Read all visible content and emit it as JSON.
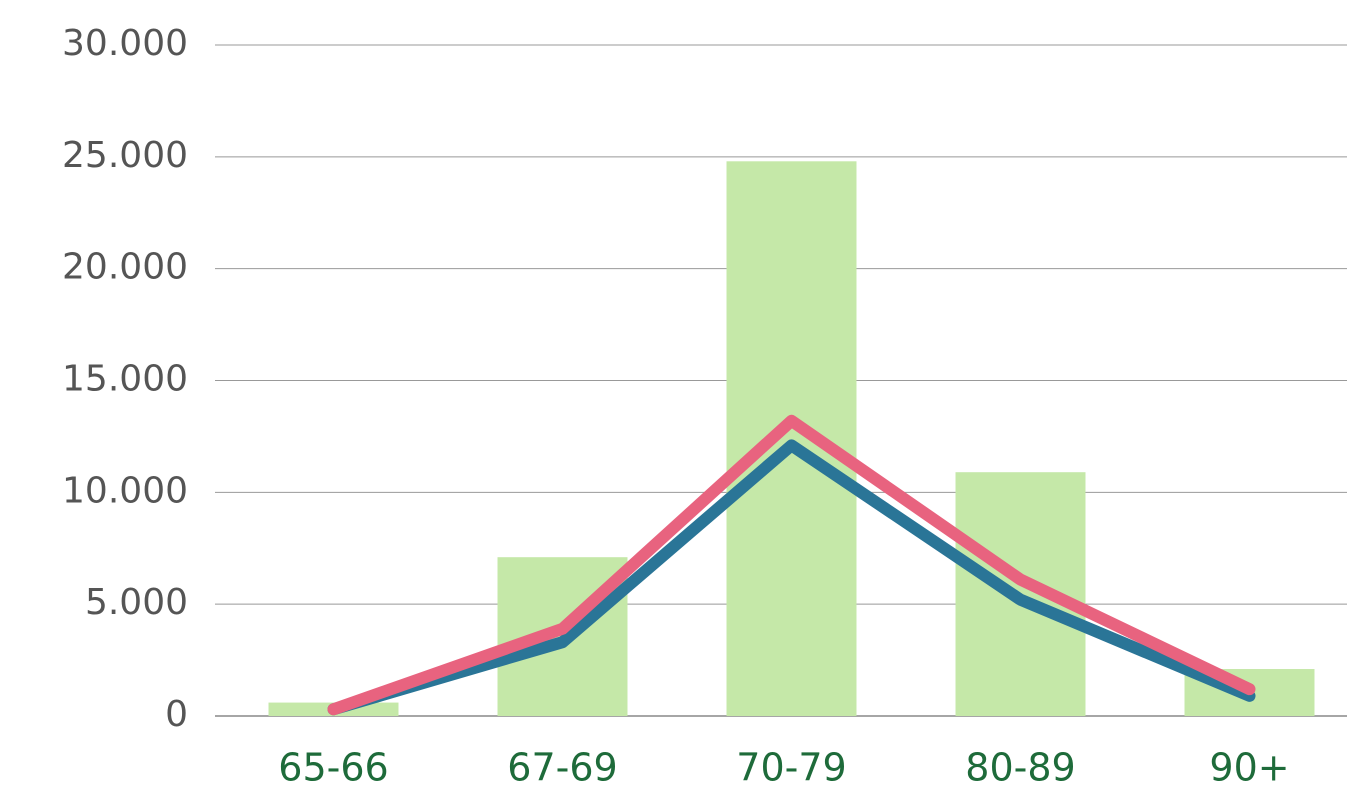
{
  "chart_data": {
    "type": "bar",
    "categories": [
      "65-66",
      "67-69",
      "70-79",
      "80-89",
      "90+"
    ],
    "series": [
      {
        "type": "bar",
        "color": "#c5e8a8",
        "values": [
          600,
          7100,
          24800,
          10900,
          2100
        ]
      },
      {
        "type": "line",
        "color": "#2a7597",
        "values": [
          300,
          3300,
          12100,
          5200,
          900
        ]
      },
      {
        "type": "line",
        "color": "#e8637f",
        "values": [
          300,
          3900,
          13200,
          6100,
          1200
        ]
      }
    ],
    "ylim": [
      0,
      30000
    ],
    "yticks": [
      0,
      {
        "value": 5000,
        "label": "5.000"
      },
      {
        "value": 10000,
        "label": "10.000"
      },
      {
        "value": 15000,
        "label": "15.000"
      },
      {
        "value": 20000,
        "label": "20.000"
      },
      {
        "value": 25000,
        "label": "25.000"
      },
      {
        "value": 30000,
        "label": "30.000"
      }
    ],
    "grid": true
  }
}
